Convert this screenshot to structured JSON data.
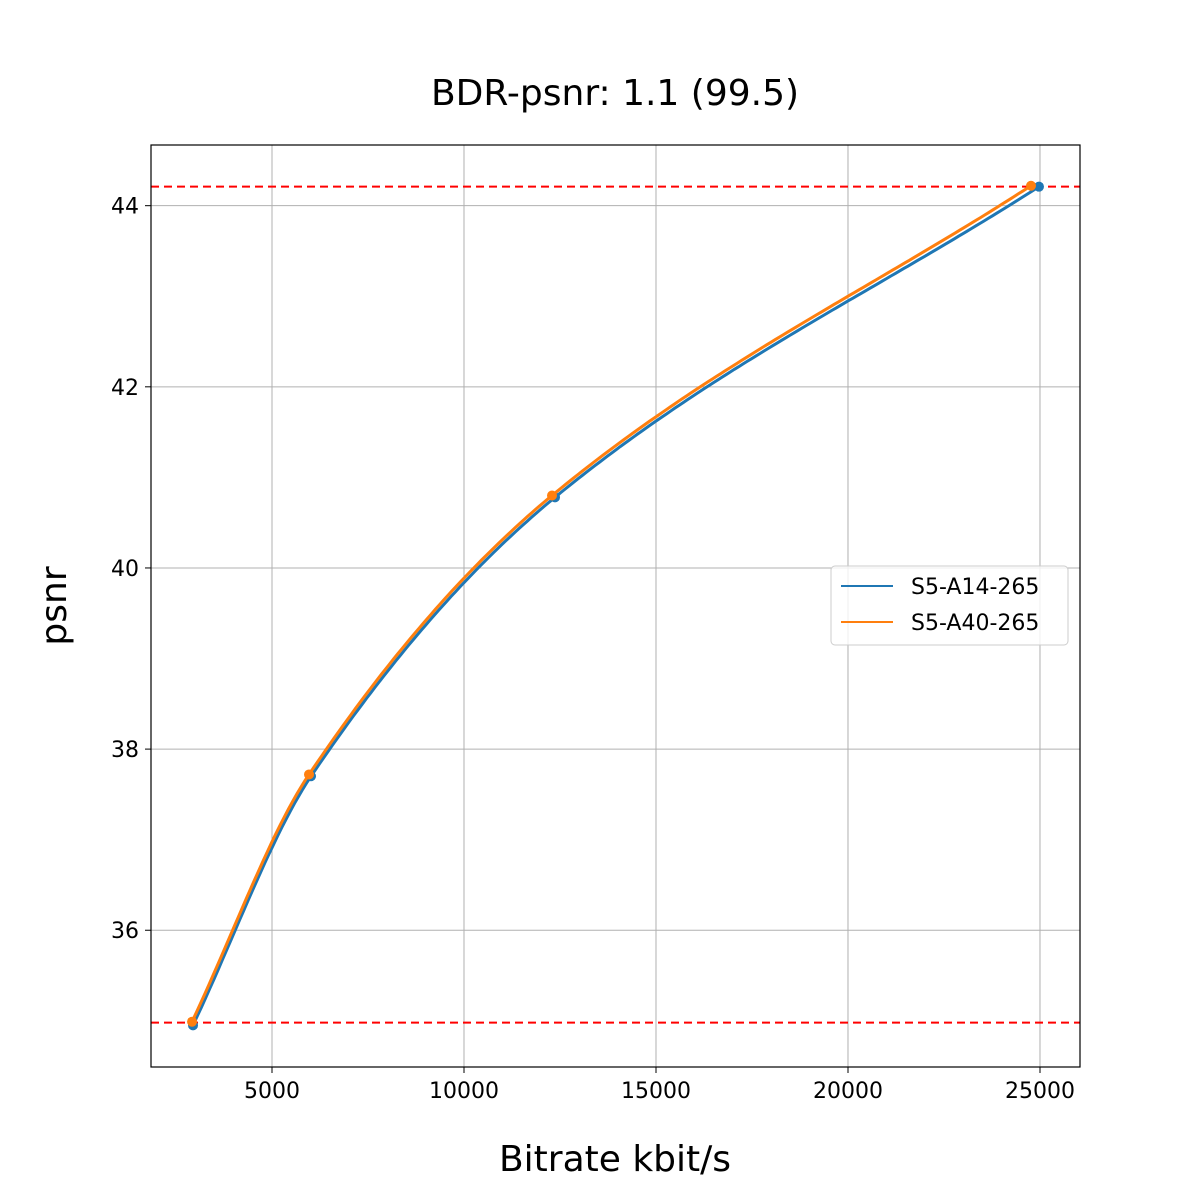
{
  "chart_data": {
    "type": "line",
    "title": "BDR-psnr: 1.1 (99.5)",
    "xlabel": "Bitrate kbit/s",
    "ylabel": "psnr",
    "xlim": [
      1849,
      26042
    ],
    "ylim": [
      34.49,
      44.67
    ],
    "xticks": [
      5000,
      10000,
      15000,
      20000,
      25000
    ],
    "yticks": [
      36,
      38,
      40,
      42,
      44
    ],
    "grid": true,
    "legend_placement": "center-right",
    "series": [
      {
        "name": "S5-A14-265",
        "color": "#1f77b4",
        "x": [
          2943,
          6016,
          12370,
          24974
        ],
        "y": [
          34.95,
          37.7,
          40.78,
          44.21
        ]
      },
      {
        "name": "S5-A40-265",
        "color": "#ff7f0e",
        "x": [
          2918,
          5964,
          12292,
          24766
        ],
        "y": [
          34.99,
          37.72,
          40.8,
          44.22
        ]
      }
    ],
    "reference_lines": [
      {
        "orientation": "horizontal",
        "y": 44.21,
        "color": "#ff0000",
        "style": "dashed"
      },
      {
        "orientation": "horizontal",
        "y": 34.98,
        "color": "#ff0000",
        "style": "dashed"
      }
    ]
  }
}
